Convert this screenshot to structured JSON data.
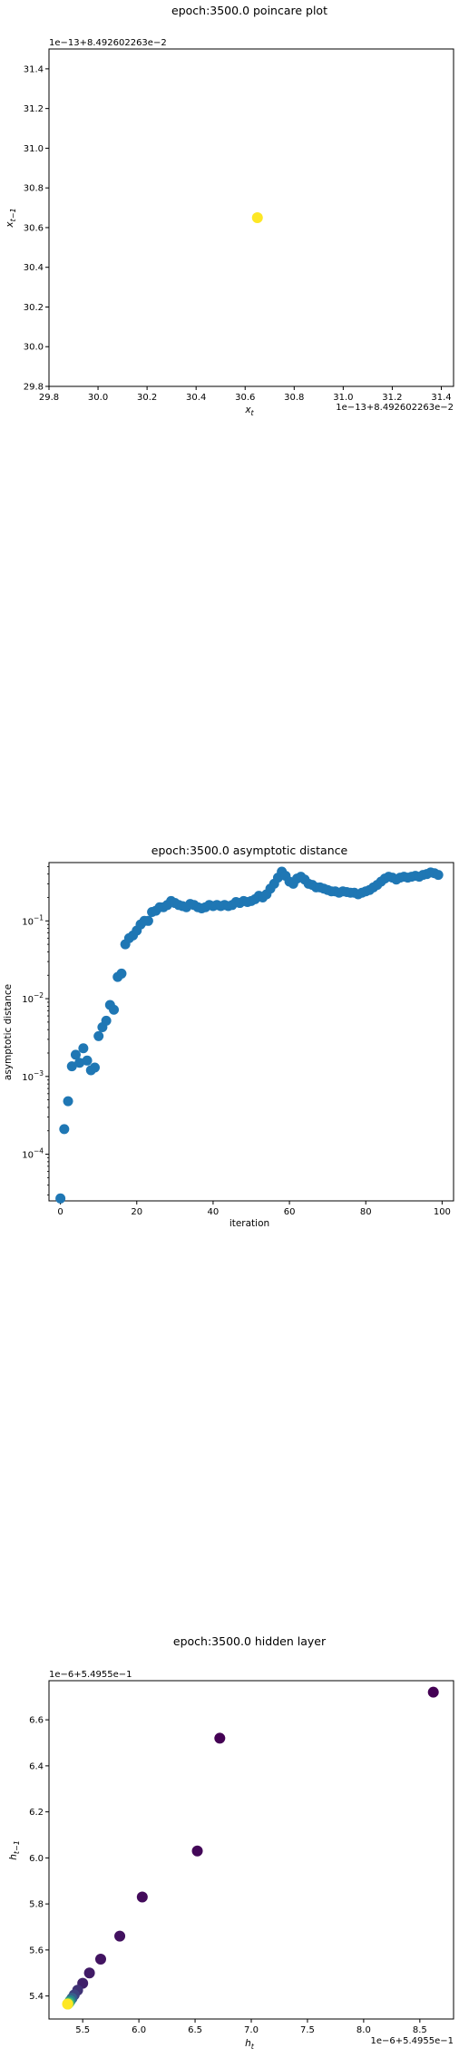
{
  "chart_data": [
    {
      "type": "scatter",
      "title": "epoch:3500.0 poincare plot",
      "xlabel": "x_t",
      "ylabel": "x_{t-1}",
      "x_offset_text": "1e−13+8.492602263e−2",
      "y_offset_text": "1e−13+8.492602263e−2",
      "xlim": [
        29.8,
        31.45
      ],
      "ylim": [
        29.8,
        31.5
      ],
      "xticks": [
        "29.8",
        "30.0",
        "30.2",
        "30.4",
        "30.6",
        "30.8",
        "31.0",
        "31.2",
        "31.4"
      ],
      "yticks": [
        "29.8",
        "30.0",
        "30.2",
        "30.4",
        "30.6",
        "30.8",
        "31.0",
        "31.2",
        "31.4"
      ],
      "grid": false,
      "points": [
        {
          "x": 30.65,
          "y": 30.65
        }
      ],
      "point_color": "#fde725"
    },
    {
      "type": "scatter",
      "title": "epoch:3500.0 asymptotic distance",
      "xlabel": "iteration",
      "ylabel": "asymptotic distance",
      "xlim": [
        -3,
        103
      ],
      "ylim_log10": [
        -4.6,
        -0.25
      ],
      "yscale": "log",
      "xticks": [
        "0",
        "20",
        "40",
        "60",
        "80",
        "100"
      ],
      "yticks": [
        {
          "base": "10",
          "exp": "−1"
        },
        {
          "base": "10",
          "exp": "−2"
        },
        {
          "base": "10",
          "exp": "−3"
        },
        {
          "base": "10",
          "exp": "−4"
        }
      ],
      "grid": false,
      "color": "#1f77b4",
      "x": [
        0,
        1,
        2,
        3,
        4,
        5,
        6,
        7,
        8,
        9,
        10,
        11,
        12,
        13,
        14,
        15,
        16,
        17,
        18,
        19,
        20,
        21,
        22,
        23,
        24,
        25,
        26,
        27,
        28,
        29,
        30,
        31,
        32,
        33,
        34,
        35,
        36,
        37,
        38,
        39,
        40,
        41,
        42,
        43,
        44,
        45,
        46,
        47,
        48,
        49,
        50,
        51,
        52,
        53,
        54,
        55,
        56,
        57,
        58,
        59,
        60,
        61,
        62,
        63,
        64,
        65,
        66,
        67,
        68,
        69,
        70,
        71,
        72,
        73,
        74,
        75,
        76,
        77,
        78,
        79,
        80,
        81,
        82,
        83,
        84,
        85,
        86,
        87,
        88,
        89,
        90,
        91,
        92,
        93,
        94,
        95,
        96,
        97,
        98,
        99
      ],
      "y": [
        2.7e-05,
        0.00021,
        0.00048,
        0.00135,
        0.0019,
        0.0015,
        0.0023,
        0.0016,
        0.0012,
        0.0013,
        0.0033,
        0.0043,
        0.0052,
        0.0083,
        0.0072,
        0.019,
        0.021,
        0.05,
        0.06,
        0.065,
        0.075,
        0.09,
        0.1,
        0.1,
        0.13,
        0.135,
        0.15,
        0.15,
        0.16,
        0.18,
        0.17,
        0.16,
        0.155,
        0.15,
        0.165,
        0.16,
        0.15,
        0.145,
        0.15,
        0.16,
        0.155,
        0.16,
        0.155,
        0.16,
        0.155,
        0.16,
        0.175,
        0.17,
        0.18,
        0.175,
        0.18,
        0.19,
        0.21,
        0.2,
        0.22,
        0.26,
        0.3,
        0.36,
        0.43,
        0.38,
        0.32,
        0.3,
        0.35,
        0.37,
        0.34,
        0.3,
        0.29,
        0.27,
        0.27,
        0.26,
        0.25,
        0.24,
        0.24,
        0.23,
        0.24,
        0.235,
        0.23,
        0.23,
        0.22,
        0.23,
        0.24,
        0.25,
        0.27,
        0.29,
        0.32,
        0.35,
        0.37,
        0.36,
        0.34,
        0.36,
        0.37,
        0.36,
        0.37,
        0.38,
        0.37,
        0.39,
        0.4,
        0.42,
        0.41,
        0.39
      ]
    },
    {
      "type": "scatter",
      "title": "epoch:3500.0 hidden layer",
      "xlabel": "h_t",
      "ylabel": "h_{t-1}",
      "x_offset_text": "1e−6+5.4955e−1",
      "y_offset_text": "1e−6+5.4955e−1",
      "xlim": [
        5.2,
        8.8
      ],
      "ylim": [
        5.3,
        6.77
      ],
      "xticks": [
        "5.5",
        "6.0",
        "6.5",
        "7.0",
        "7.5",
        "8.0",
        "8.5"
      ],
      "yticks": [
        "5.4",
        "5.6",
        "5.8",
        "6.0",
        "6.2",
        "6.4",
        "6.6"
      ],
      "grid": false,
      "colormap": "viridis",
      "points": [
        {
          "x": 8.62,
          "y": 6.72,
          "c": 0.0
        },
        {
          "x": 6.72,
          "y": 6.52,
          "c": 0.0
        },
        {
          "x": 6.52,
          "y": 6.03,
          "c": 0.02
        },
        {
          "x": 6.03,
          "y": 5.83,
          "c": 0.03
        },
        {
          "x": 5.83,
          "y": 5.66,
          "c": 0.05
        },
        {
          "x": 5.66,
          "y": 5.56,
          "c": 0.06
        },
        {
          "x": 5.56,
          "y": 5.5,
          "c": 0.08
        },
        {
          "x": 5.5,
          "y": 5.455,
          "c": 0.1
        },
        {
          "x": 5.455,
          "y": 5.425,
          "c": 0.15
        },
        {
          "x": 5.425,
          "y": 5.405,
          "c": 0.2
        },
        {
          "x": 5.405,
          "y": 5.39,
          "c": 0.3
        },
        {
          "x": 5.39,
          "y": 5.38,
          "c": 0.45
        },
        {
          "x": 5.38,
          "y": 5.372,
          "c": 0.6
        },
        {
          "x": 5.372,
          "y": 5.368,
          "c": 0.75
        },
        {
          "x": 5.368,
          "y": 5.365,
          "c": 0.9
        },
        {
          "x": 5.365,
          "y": 5.365,
          "c": 1.0
        }
      ]
    }
  ]
}
